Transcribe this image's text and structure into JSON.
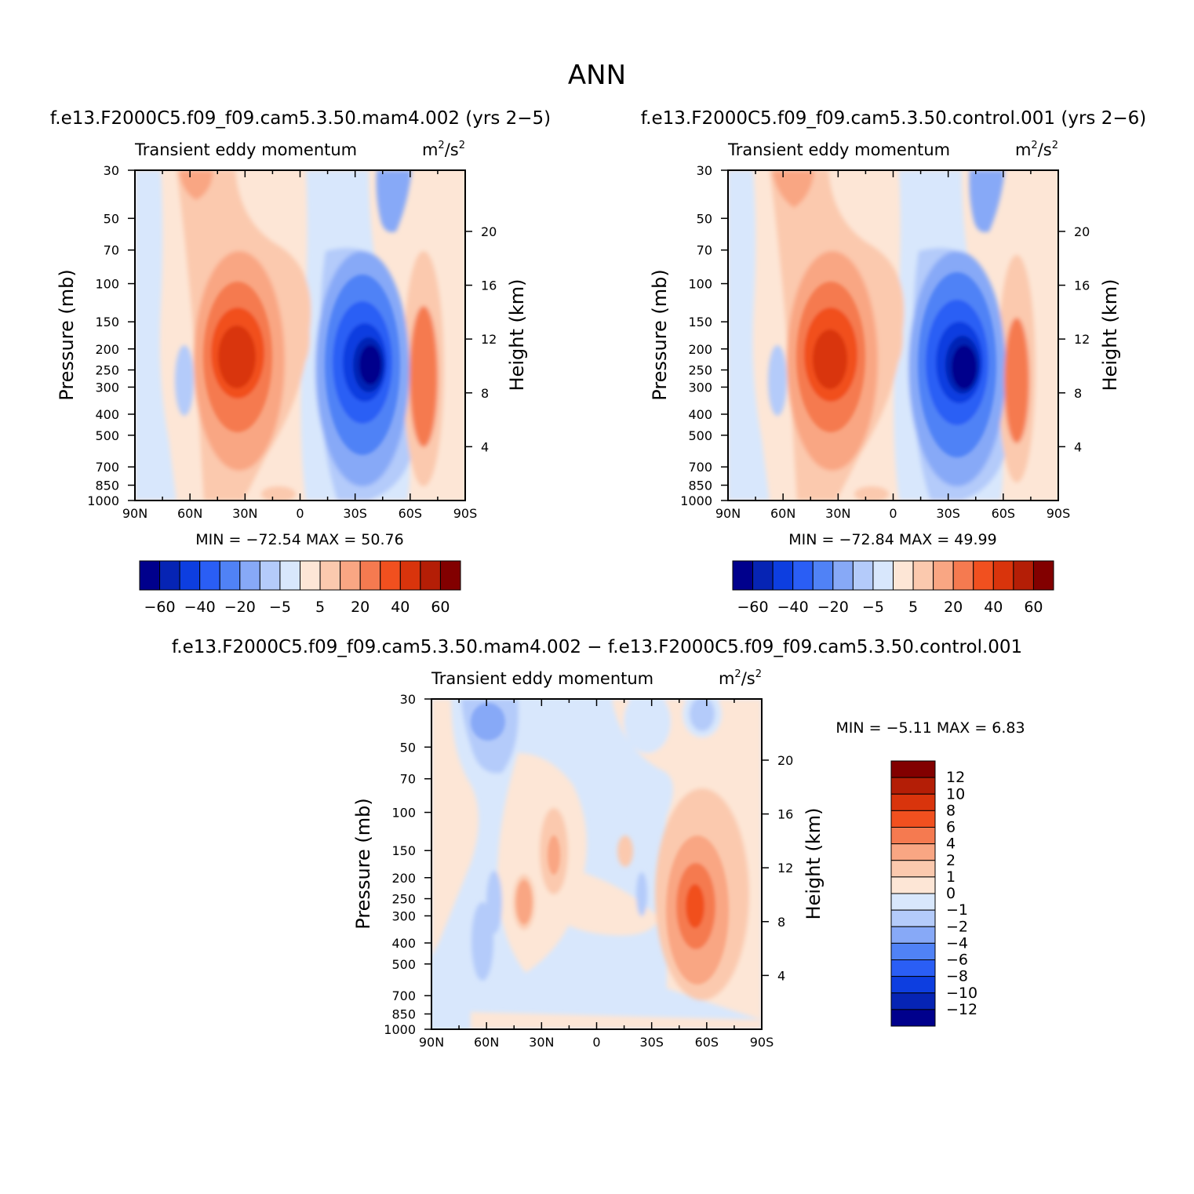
{
  "figure_title": "ANN",
  "colors": {
    "full_levels": [
      "#00008c",
      "#0624b4",
      "#0d3ee0",
      "#2a5ef5",
      "#5082f6",
      "#87a9f7",
      "#b4cbfa",
      "#d8e7fc",
      "#fde6d6",
      "#fbc9ae",
      "#f9a683",
      "#f57a50",
      "#f1501f",
      "#d9340c",
      "#b41e06",
      "#820000"
    ],
    "diff_levels": [
      "#00008c",
      "#0624b4",
      "#0d3ee0",
      "#2a5ef5",
      "#5082f6",
      "#87a9f7",
      "#b4cbfa",
      "#d8e7fc",
      "#fde6d6",
      "#fbc9ae",
      "#f9a683",
      "#f57a50",
      "#f1501f",
      "#d9340c",
      "#b41e06",
      "#820000"
    ]
  },
  "chart_data": [
    {
      "type": "heatmap",
      "panel": "model",
      "case_title": "f.e13.F2000C5.f09_f09.cam5.3.50.mam4.002 (yrs 2−5)",
      "variable": "Transient eddy momentum",
      "units_base": "m",
      "units_mid": "/s",
      "units_exp": "2",
      "ylabel": "Pressure (mb)",
      "y2label": "Height (km)",
      "x_ticks": [
        "90N",
        "60N",
        "30N",
        "0",
        "30S",
        "60S",
        "90S"
      ],
      "x_range": [
        90,
        -90
      ],
      "y_ticks": [
        "30",
        "50",
        "70",
        "100",
        "150",
        "200",
        "250",
        "300",
        "400",
        "500",
        "700",
        "850",
        "1000"
      ],
      "y_range": [
        30,
        1000
      ],
      "height_ticks": [
        "20",
        "16",
        "12",
        "8",
        "4"
      ],
      "stats": {
        "min_label": "MIN =",
        "min": "−72.54",
        "max_label": "MAX =",
        "max": "50.76"
      },
      "min_value": -72.54,
      "max_value": 50.76,
      "colorbar_labels": [
        "−60",
        "−40",
        "−20",
        "−5",
        "5",
        "20",
        "40",
        "60"
      ],
      "features": [
        {
          "name": "NH subtropical positive max",
          "lat": 31,
          "p": 210,
          "value": 50.76
        },
        {
          "name": "SH midlatitude negative min",
          "lat": -38,
          "p": 240,
          "value": -72.54
        },
        {
          "name": "SH high-latitude positive",
          "lat": -67,
          "p": 300,
          "value": 30
        },
        {
          "name": "Tropical positive lobe",
          "lat": 3,
          "p": 190,
          "value": 8
        },
        {
          "name": "NH high-latitude negative",
          "lat": 66,
          "p": 280,
          "value": -8
        }
      ]
    },
    {
      "type": "heatmap",
      "panel": "control",
      "case_title": "f.e13.F2000C5.f09_f09.cam5.3.50.control.001 (yrs 2−6)",
      "variable": "Transient eddy momentum",
      "units_base": "m",
      "units_mid": "/s",
      "units_exp": "2",
      "ylabel": "Pressure (mb)",
      "y2label": "Height (km)",
      "x_ticks": [
        "90N",
        "60N",
        "30N",
        "0",
        "30S",
        "60S",
        "90S"
      ],
      "x_range": [
        90,
        -90
      ],
      "y_ticks": [
        "30",
        "50",
        "70",
        "100",
        "150",
        "200",
        "250",
        "300",
        "400",
        "500",
        "700",
        "850",
        "1000"
      ],
      "y_range": [
        30,
        1000
      ],
      "height_ticks": [
        "20",
        "16",
        "12",
        "8",
        "4"
      ],
      "stats": {
        "min_label": "MIN =",
        "min": "−72.84",
        "max_label": "MAX =",
        "max": "49.99"
      },
      "min_value": -72.84,
      "max_value": 49.99,
      "colorbar_labels": [
        "−60",
        "−40",
        "−20",
        "−5",
        "5",
        "20",
        "40",
        "60"
      ],
      "features": [
        {
          "name": "NH subtropical positive max",
          "lat": 31,
          "p": 230,
          "value": 49.99
        },
        {
          "name": "SH midlatitude negative min",
          "lat": -40,
          "p": 250,
          "value": -72.84
        },
        {
          "name": "SH high-latitude positive",
          "lat": -67,
          "p": 300,
          "value": 26
        },
        {
          "name": "Tropical positive lobe",
          "lat": 3,
          "p": 190,
          "value": 8
        },
        {
          "name": "NH high-latitude negative",
          "lat": 66,
          "p": 280,
          "value": -8
        }
      ]
    },
    {
      "type": "heatmap",
      "panel": "difference",
      "case_title": "f.e13.F2000C5.f09_f09.cam5.3.50.mam4.002 − f.e13.F2000C5.f09_f09.cam5.3.50.control.001",
      "variable": "Transient eddy momentum",
      "units_base": "m",
      "units_mid": "/s",
      "units_exp": "2",
      "ylabel": "Pressure (mb)",
      "y2label": "Height (km)",
      "x_ticks": [
        "90N",
        "60N",
        "30N",
        "0",
        "30S",
        "60S",
        "90S"
      ],
      "x_range": [
        90,
        -90
      ],
      "y_ticks": [
        "30",
        "50",
        "70",
        "100",
        "150",
        "200",
        "250",
        "300",
        "400",
        "500",
        "700",
        "850",
        "1000"
      ],
      "y_range": [
        30,
        1000
      ],
      "height_ticks": [
        "20",
        "16",
        "12",
        "8",
        "4"
      ],
      "stats": {
        "min_label": "MIN =",
        "min": "−5.11",
        "max_label": "MAX =",
        "max": "6.83"
      },
      "min_value": -5.11,
      "max_value": 6.83,
      "colorbar_labels": [
        "12",
        "10",
        "8",
        "6",
        "4",
        "2",
        "1",
        "0",
        "−1",
        "−2",
        "−4",
        "−6",
        "−8",
        "−10",
        "−12"
      ],
      "features": [
        {
          "name": "SH high-latitude positive max",
          "lat": -54,
          "p": 260,
          "value": 6.83
        },
        {
          "name": "NH subtropical positive",
          "lat": 37,
          "p": 250,
          "value": 3
        },
        {
          "name": "NH subtropical upper positive",
          "lat": 23,
          "p": 150,
          "value": 3
        },
        {
          "name": "NH upper negative",
          "lat": 62,
          "p": 40,
          "value": -3
        },
        {
          "name": "NH midlatitude negative",
          "lat": 57,
          "p": 400,
          "value": -1.5
        },
        {
          "name": "SH upper negative",
          "lat": -50,
          "p": 35,
          "value": -1.5
        },
        {
          "name": "Equatorial negative",
          "lat": -25,
          "p": 250,
          "value": -1.5
        }
      ]
    }
  ]
}
